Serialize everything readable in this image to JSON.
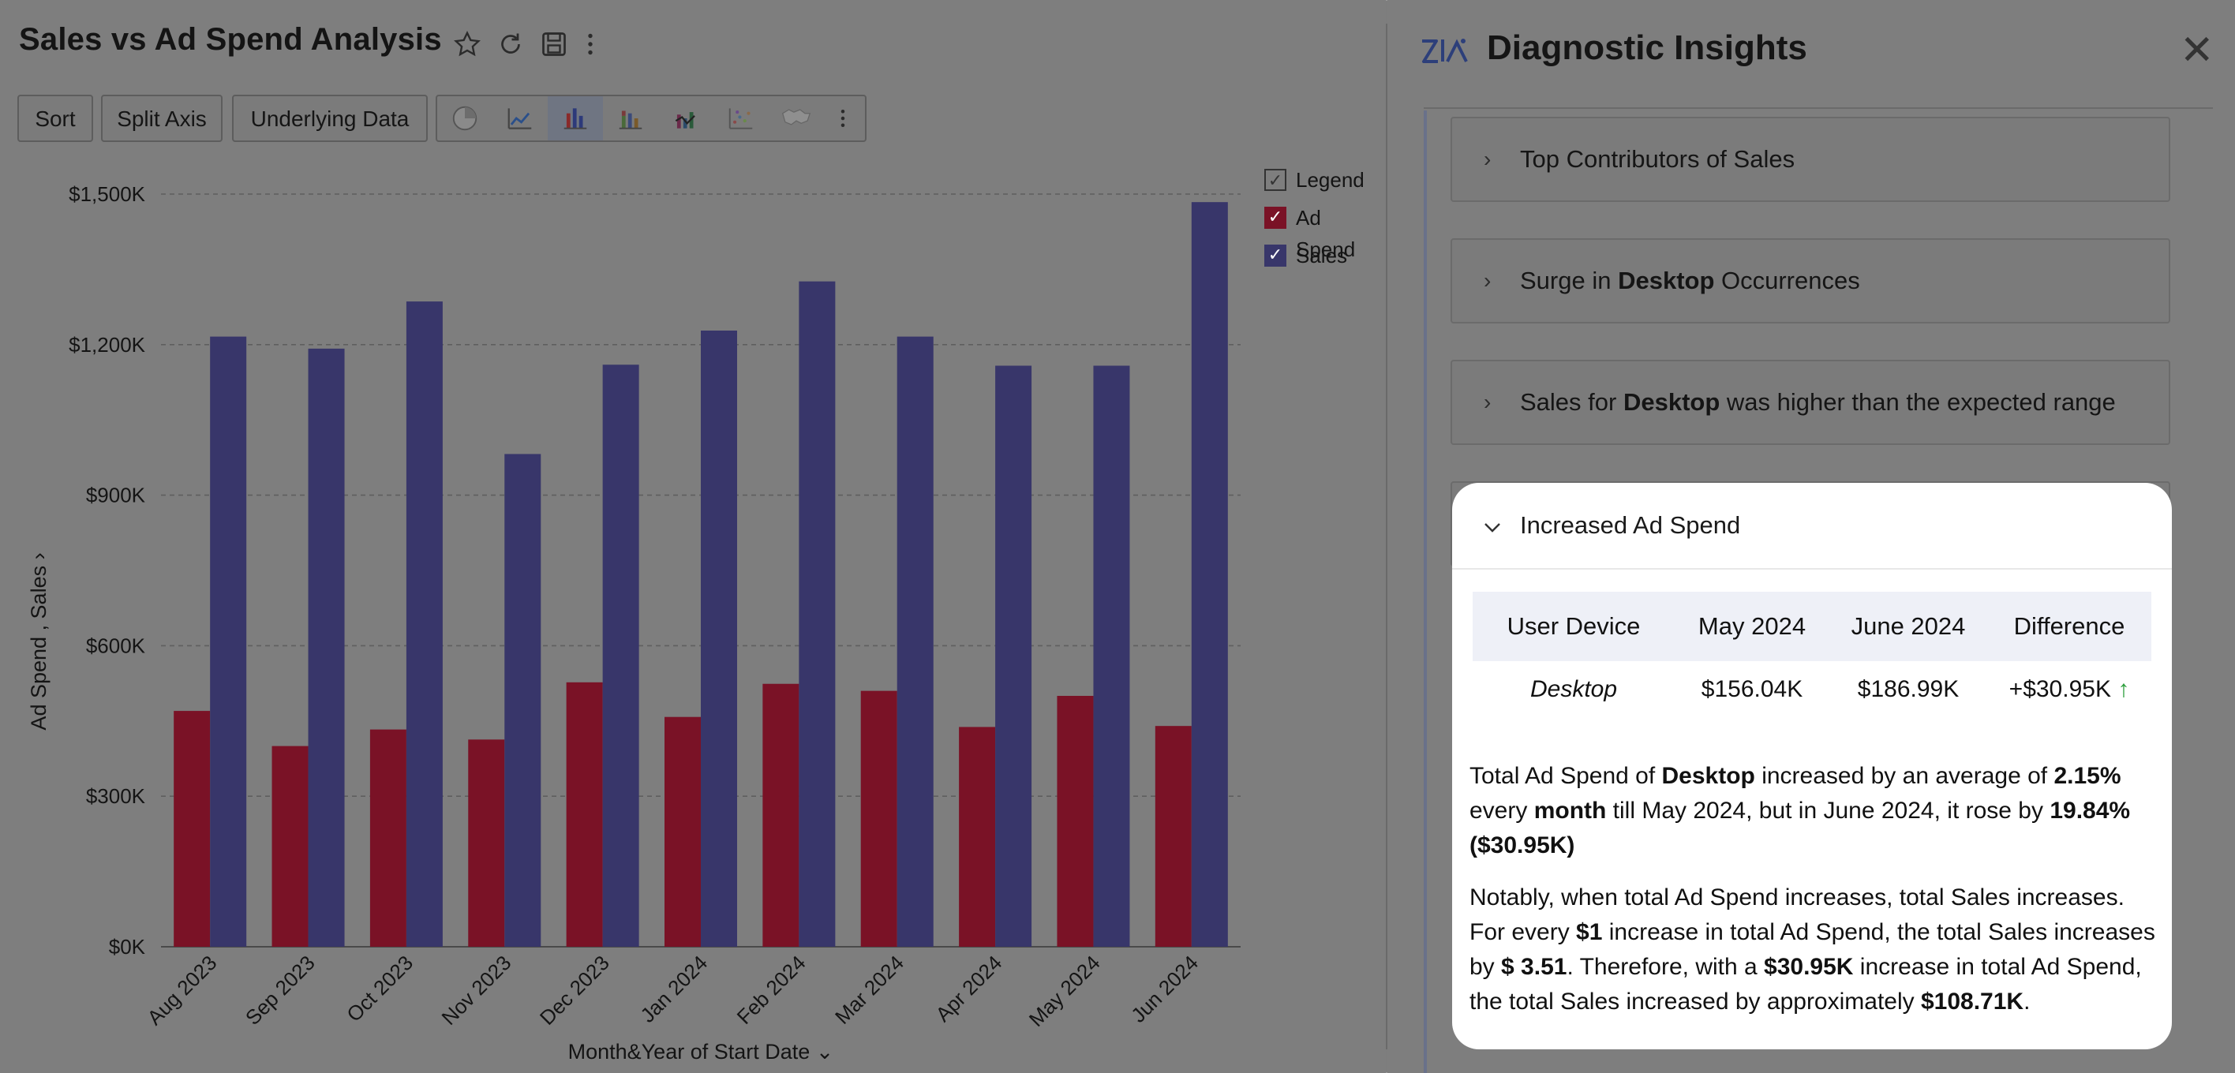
{
  "left": {
    "title": "Sales vs Ad Spend Analysis",
    "toolbar": {
      "sort": "Sort",
      "split_axis": "Split Axis",
      "underlying_data": "Underlying Data"
    },
    "legend": {
      "title": "Legend",
      "items": [
        "Ad Spend",
        "Sales"
      ]
    },
    "colors": {
      "ad_spend": "#7a1226",
      "sales": "#38366a"
    }
  },
  "chart_data": {
    "type": "bar",
    "categories": [
      "Aug 2023",
      "Sep 2023",
      "Oct 2023",
      "Nov 2023",
      "Dec 2023",
      "Jan 2024",
      "Feb 2024",
      "Mar 2024",
      "Apr 2024",
      "May 2024",
      "Jun 2024"
    ],
    "series": [
      {
        "name": "Ad Spend",
        "values": [
          470,
          400,
          433,
          413,
          527,
          458,
          524,
          510,
          438,
          500,
          440
        ]
      },
      {
        "name": "Sales",
        "values": [
          1216,
          1192,
          1286,
          982,
          1160,
          1228,
          1326,
          1216,
          1158,
          1158,
          1484
        ]
      }
    ],
    "y_ticks": [
      "$0K",
      "$300K",
      "$600K",
      "$900K",
      "$1,200K",
      "$1,500K"
    ],
    "ylim": [
      0,
      1500
    ],
    "ylabel": "Ad Spend , Sales",
    "xlabel": "Month&Year of Start Date",
    "grid": true,
    "legend_position": "right"
  },
  "right": {
    "title": "Diagnostic Insights",
    "cards": [
      {
        "pre": "Top Contributors of Sales",
        "bold": "",
        "post": ""
      },
      {
        "pre": "Surge in ",
        "bold": "Desktop",
        "post": " Occurrences"
      },
      {
        "pre": "Sales for ",
        "bold": "Desktop",
        "post": " was higher than the expected range"
      }
    ],
    "panel": {
      "title": "Increased Ad Spend",
      "table": {
        "headers": [
          "User Device",
          "May 2024",
          "June 2024",
          "Difference"
        ],
        "rows": [
          [
            "Desktop",
            "$156.04K",
            "$186.99K",
            "+$30.95K"
          ]
        ]
      },
      "p1": [
        "Total Ad Spend of ",
        "Desktop",
        " increased by an average of ",
        "2.15%",
        " every ",
        "month",
        " till May 2024, but in June 2024, it rose by ",
        "19.84% ($30.95K)"
      ],
      "p2": [
        "Notably, when total Ad Spend increases, total Sales increases. For every ",
        "$1",
        " increase in total Ad Spend, the total Sales increases by ",
        "$ 3.51",
        ". Therefore, with a ",
        "$30.95K",
        " increase in total Ad Spend, the total Sales increased by approximately ",
        "$108.71K",
        "."
      ]
    }
  }
}
